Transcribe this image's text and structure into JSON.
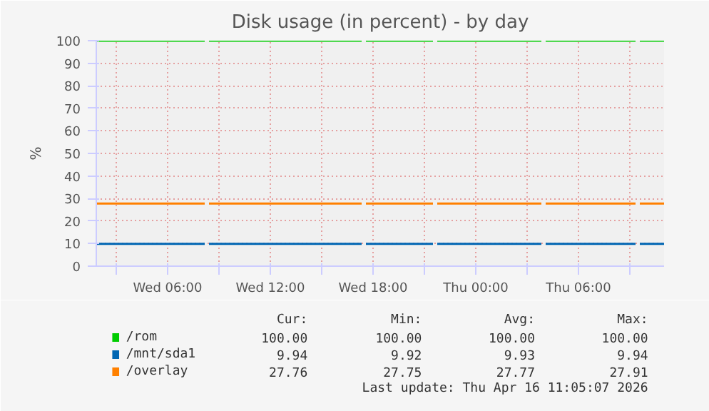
{
  "chart_data": {
    "type": "line",
    "title": "Disk usage (in percent) - by day",
    "ylabel": "%",
    "x": [
      "2026-04-15T01:50",
      "2026-04-15T08:10",
      "2026-04-15T08:17",
      "2026-04-15T08:25",
      "2026-04-15T17:20",
      "2026-04-15T17:27",
      "2026-04-15T17:35",
      "2026-04-15T21:30",
      "2026-04-15T21:37",
      "2026-04-15T21:45",
      "2026-04-16T03:50",
      "2026-04-16T03:57",
      "2026-04-16T04:05",
      "2026-04-16T09:20",
      "2026-04-16T09:27",
      "2026-04-16T09:35",
      "2026-04-16T11:00"
    ],
    "series": [
      {
        "name": "/rom",
        "color": "#00cc00",
        "values": [
          100,
          100,
          null,
          100,
          100,
          null,
          100,
          100,
          null,
          100,
          100,
          null,
          100,
          100,
          null,
          100,
          100
        ]
      },
      {
        "name": "/mnt/sda1",
        "color": "#0066b3",
        "values": [
          9.9,
          9.9,
          null,
          9.9,
          9.9,
          null,
          9.9,
          9.9,
          null,
          9.9,
          9.9,
          null,
          9.9,
          9.9,
          null,
          9.9,
          9.9
        ]
      },
      {
        "name": "/overlay",
        "color": "#ff8000",
        "values": [
          27.8,
          27.8,
          null,
          27.8,
          27.8,
          null,
          27.8,
          27.8,
          null,
          27.8,
          27.8,
          null,
          27.8,
          27.8,
          null,
          27.8,
          27.8
        ]
      }
    ],
    "xlim": [
      "2026-04-15T01:50",
      "2026-04-16T11:00"
    ],
    "xticks": [
      {
        "value": "2026-04-15T03:00",
        "label": null
      },
      {
        "value": "2026-04-15T06:00",
        "label": "Wed 06:00"
      },
      {
        "value": "2026-04-15T09:00",
        "label": null
      },
      {
        "value": "2026-04-15T12:00",
        "label": "Wed 12:00"
      },
      {
        "value": "2026-04-15T15:00",
        "label": null
      },
      {
        "value": "2026-04-15T18:00",
        "label": "Wed 18:00"
      },
      {
        "value": "2026-04-15T21:00",
        "label": null
      },
      {
        "value": "2026-04-16T00:00",
        "label": "Thu 00:00"
      },
      {
        "value": "2026-04-16T03:00",
        "label": null
      },
      {
        "value": "2026-04-16T06:00",
        "label": "Thu 06:00"
      },
      {
        "value": "2026-04-16T09:00",
        "label": null
      }
    ],
    "ylim": [
      0,
      100
    ],
    "yticks": [
      0,
      10,
      20,
      30,
      40,
      50,
      60,
      70,
      80,
      90,
      100
    ],
    "grid": true,
    "legend": "bottom",
    "marker": "none",
    "line_style": "solid",
    "annotations": [
      "Cur:",
      "Min:",
      "Avg:",
      "Max:",
      "100.00",
      "100.00",
      "100.00",
      "100.00",
      "9.94",
      "9.92",
      "9.93",
      "9.94",
      "27.76",
      "27.75",
      "27.77",
      "27.91",
      "Last update: Thu Apr 16 11:05:07 2026"
    ]
  }
}
